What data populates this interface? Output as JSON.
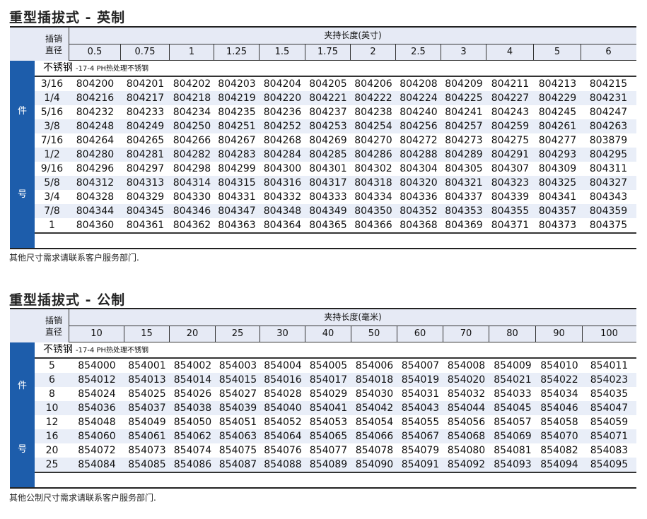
{
  "imperial": {
    "title": "重型插拔式 - 英制",
    "diameter_header": "插销直径",
    "length_header": "夹持长度(英寸)",
    "lengths": [
      "0.5",
      "0.75",
      "1",
      "1.25",
      "1.5",
      "1.75",
      "2",
      "2.5",
      "3",
      "4",
      "5",
      "6"
    ],
    "side_label_top": "件",
    "side_label_bottom": "号",
    "material": "不锈钢",
    "material_note": "-17-4 PH热处理不锈钢",
    "rows": [
      {
        "d": "3/16",
        "p": [
          "804200",
          "804201",
          "804202",
          "804203",
          "804204",
          "804205",
          "804206",
          "804208",
          "804209",
          "804211",
          "804213",
          "804215"
        ]
      },
      {
        "d": "1/4",
        "p": [
          "804216",
          "804217",
          "804218",
          "804219",
          "804220",
          "804221",
          "804222",
          "804224",
          "804225",
          "804227",
          "804229",
          "804231"
        ]
      },
      {
        "d": "5/16",
        "p": [
          "804232",
          "804233",
          "804234",
          "804235",
          "804236",
          "804237",
          "804238",
          "804240",
          "804241",
          "804243",
          "804245",
          "804247"
        ]
      },
      {
        "d": "3/8",
        "p": [
          "804248",
          "804249",
          "804250",
          "804251",
          "804252",
          "804253",
          "804254",
          "804256",
          "804257",
          "804259",
          "804261",
          "804263"
        ]
      },
      {
        "d": "7/16",
        "p": [
          "804264",
          "804265",
          "804266",
          "804267",
          "804268",
          "804269",
          "804270",
          "804272",
          "804273",
          "804275",
          "804277",
          "803879"
        ]
      },
      {
        "d": "1/2",
        "p": [
          "804280",
          "804281",
          "804282",
          "804283",
          "804284",
          "804285",
          "804286",
          "804288",
          "804289",
          "804291",
          "804293",
          "804295"
        ]
      },
      {
        "d": "9/16",
        "p": [
          "804296",
          "804297",
          "804298",
          "804299",
          "804300",
          "804301",
          "804302",
          "804304",
          "804305",
          "804307",
          "804309",
          "804311"
        ]
      },
      {
        "d": "5/8",
        "p": [
          "804312",
          "804313",
          "804314",
          "804315",
          "804316",
          "804317",
          "804318",
          "804320",
          "804321",
          "804323",
          "804325",
          "804327"
        ]
      },
      {
        "d": "3/4",
        "p": [
          "804328",
          "804329",
          "804330",
          "804331",
          "804332",
          "804333",
          "804334",
          "804336",
          "804337",
          "804339",
          "804341",
          "804343"
        ]
      },
      {
        "d": "7/8",
        "p": [
          "804344",
          "804345",
          "804346",
          "804347",
          "804348",
          "804349",
          "804350",
          "804352",
          "804353",
          "804355",
          "804357",
          "804359"
        ]
      },
      {
        "d": "1",
        "p": [
          "804360",
          "804361",
          "804362",
          "804363",
          "804364",
          "804365",
          "804366",
          "804368",
          "804369",
          "804371",
          "804373",
          "804375"
        ]
      }
    ],
    "note": "其他尺寸需求请联系客户服务部门."
  },
  "metric": {
    "title": "重型插拔式 - 公制",
    "diameter_header": "插销直径",
    "length_header": "夹持长度(毫米)",
    "lengths": [
      "10",
      "15",
      "20",
      "25",
      "30",
      "40",
      "50",
      "60",
      "70",
      "80",
      "90",
      "100"
    ],
    "side_label_top": "件",
    "side_label_bottom": "号",
    "material": "不锈钢",
    "material_note": "-17-4 PH热处理不锈钢",
    "rows": [
      {
        "d": "5",
        "p": [
          "854000",
          "854001",
          "854002",
          "854003",
          "854004",
          "854005",
          "854006",
          "854007",
          "854008",
          "854009",
          "854010",
          "854011"
        ]
      },
      {
        "d": "6",
        "p": [
          "854012",
          "854013",
          "854014",
          "854015",
          "854016",
          "854017",
          "854018",
          "854019",
          "854020",
          "854021",
          "854022",
          "854023"
        ]
      },
      {
        "d": "8",
        "p": [
          "854024",
          "854025",
          "854026",
          "854027",
          "854028",
          "854029",
          "854030",
          "854031",
          "854032",
          "854033",
          "854034",
          "854035"
        ]
      },
      {
        "d": "10",
        "p": [
          "854036",
          "854037",
          "854038",
          "854039",
          "854040",
          "854041",
          "854042",
          "854043",
          "854044",
          "854045",
          "854046",
          "854047"
        ]
      },
      {
        "d": "12",
        "p": [
          "854048",
          "854049",
          "854050",
          "854051",
          "854052",
          "854053",
          "854054",
          "854055",
          "854056",
          "854057",
          "854058",
          "854059"
        ]
      },
      {
        "d": "16",
        "p": [
          "854060",
          "854061",
          "854062",
          "854063",
          "854064",
          "854065",
          "854066",
          "854067",
          "854068",
          "854069",
          "854070",
          "854071"
        ]
      },
      {
        "d": "20",
        "p": [
          "854072",
          "854073",
          "854074",
          "854075",
          "854076",
          "854077",
          "854078",
          "854079",
          "854080",
          "854081",
          "854082",
          "854083"
        ]
      },
      {
        "d": "25",
        "p": [
          "854084",
          "854085",
          "854086",
          "854087",
          "854088",
          "854089",
          "854090",
          "854091",
          "854092",
          "854093",
          "854094",
          "854095"
        ]
      }
    ],
    "note": "其他公制尺寸需求请联系客户服务部门."
  },
  "colors": {
    "stripe": "#1d5dab",
    "header_bg": "#e6eaf5",
    "alt_row": "#e9eef8"
  }
}
